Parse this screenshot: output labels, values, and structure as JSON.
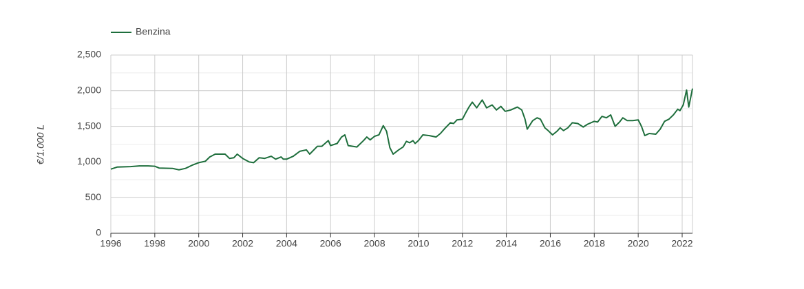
{
  "chart_data": {
    "type": "line",
    "y_label": "€/1.000 L",
    "legend": "top-left",
    "grid": true,
    "xlim": [
      1996,
      2022.47
    ],
    "xticks": [
      1996,
      1998,
      2000,
      2002,
      2004,
      2006,
      2008,
      2010,
      2012,
      2014,
      2016,
      2018,
      2020,
      2022
    ],
    "ylim": [
      0,
      2500
    ],
    "yticks": [
      0,
      500,
      {
        "value": 1000,
        "label": "1,000"
      },
      {
        "value": 1500,
        "label": "1,500"
      },
      {
        "value": 2000,
        "label": "2,000"
      },
      {
        "value": 2500,
        "label": "2,500"
      }
    ],
    "yminorticks": [
      250,
      750,
      1250,
      1750,
      2250
    ],
    "x": [
      1996,
      1996.3,
      1996.9,
      1997.3,
      1997.7,
      1998.0,
      1998.2,
      1998.8,
      1999.1,
      1999.4,
      1999.7,
      2000.0,
      2000.3,
      2000.5,
      2000.75,
      2000.95,
      2001.2,
      2001.4,
      2001.6,
      2001.75,
      2002.0,
      2002.3,
      2002.5,
      2002.75,
      2003.0,
      2003.3,
      2003.5,
      2003.75,
      2003.85,
      2004.0,
      2004.3,
      2004.6,
      2004.9,
      2005.05,
      2005.4,
      2005.6,
      2005.9,
      2006.0,
      2006.3,
      2006.5,
      2006.65,
      2006.8,
      2007.2,
      2007.5,
      2007.65,
      2007.8,
      2008.0,
      2008.2,
      2008.4,
      2008.55,
      2008.7,
      2008.85,
      2009.1,
      2009.3,
      2009.45,
      2009.6,
      2009.75,
      2009.85,
      2010.0,
      2010.2,
      2010.5,
      2010.8,
      2011.0,
      2011.2,
      2011.45,
      2011.6,
      2011.75,
      2012.0,
      2012.15,
      2012.3,
      2012.45,
      2012.65,
      2012.9,
      2013.1,
      2013.35,
      2013.55,
      2013.75,
      2013.95,
      2014.2,
      2014.5,
      2014.7,
      2014.85,
      2014.95,
      2015.2,
      2015.4,
      2015.55,
      2015.75,
      2015.9,
      2016.1,
      2016.3,
      2016.45,
      2016.6,
      2016.8,
      2017.0,
      2017.25,
      2017.5,
      2017.7,
      2018.0,
      2018.15,
      2018.35,
      2018.55,
      2018.75,
      2018.95,
      2019.15,
      2019.3,
      2019.5,
      2019.75,
      2020.0,
      2020.15,
      2020.3,
      2020.5,
      2020.8,
      2021.0,
      2021.2,
      2021.4,
      2021.6,
      2021.8,
      2021.9,
      2022.05,
      2022.2,
      2022.3,
      2022.47
    ],
    "series": [
      {
        "name": "Benzina",
        "color": "#1e6e3c",
        "values": [
          900,
          930,
          935,
          945,
          945,
          940,
          915,
          910,
          890,
          910,
          955,
          990,
          1010,
          1070,
          1110,
          1110,
          1110,
          1050,
          1060,
          1110,
          1050,
          1000,
          990,
          1060,
          1050,
          1080,
          1040,
          1070,
          1040,
          1040,
          1080,
          1150,
          1170,
          1110,
          1220,
          1220,
          1300,
          1230,
          1260,
          1350,
          1380,
          1230,
          1210,
          1300,
          1350,
          1310,
          1360,
          1380,
          1510,
          1430,
          1200,
          1110,
          1170,
          1210,
          1290,
          1270,
          1300,
          1260,
          1300,
          1380,
          1370,
          1350,
          1400,
          1470,
          1550,
          1540,
          1590,
          1600,
          1690,
          1770,
          1840,
          1760,
          1870,
          1760,
          1800,
          1730,
          1780,
          1710,
          1730,
          1770,
          1730,
          1600,
          1460,
          1580,
          1620,
          1600,
          1480,
          1440,
          1380,
          1430,
          1480,
          1440,
          1480,
          1550,
          1540,
          1490,
          1530,
          1570,
          1560,
          1640,
          1620,
          1660,
          1500,
          1560,
          1620,
          1580,
          1580,
          1590,
          1500,
          1370,
          1400,
          1390,
          1460,
          1570,
          1600,
          1660,
          1740,
          1720,
          1800,
          2010,
          1770,
          2030
        ]
      }
    ]
  }
}
